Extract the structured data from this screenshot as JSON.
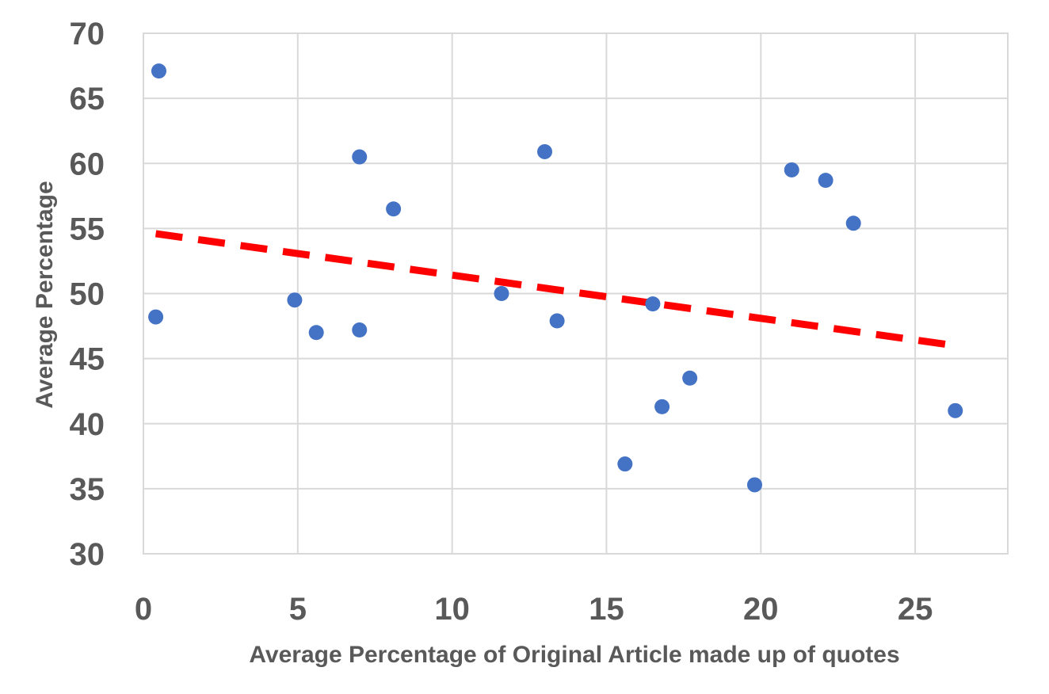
{
  "chart_data": {
    "type": "scatter",
    "xlabel": "Average Percentage of Original Article made up of quotes",
    "ylabel": "Average Percentage",
    "xlim": [
      0,
      28
    ],
    "ylim": [
      30,
      70
    ],
    "x_ticks": [
      0,
      5,
      10,
      15,
      20,
      25
    ],
    "y_ticks": [
      30,
      35,
      40,
      45,
      50,
      55,
      60,
      65,
      70
    ],
    "grid": true,
    "series": [
      {
        "points": [
          {
            "x": 0.5,
            "y": 67.1
          },
          {
            "x": 0.4,
            "y": 48.2
          },
          {
            "x": 4.9,
            "y": 49.5
          },
          {
            "x": 5.6,
            "y": 47.0
          },
          {
            "x": 7.0,
            "y": 60.5
          },
          {
            "x": 7.0,
            "y": 47.2
          },
          {
            "x": 8.1,
            "y": 56.5
          },
          {
            "x": 11.6,
            "y": 50.0
          },
          {
            "x": 13.0,
            "y": 60.9
          },
          {
            "x": 13.4,
            "y": 47.9
          },
          {
            "x": 15.6,
            "y": 36.9
          },
          {
            "x": 16.5,
            "y": 49.2
          },
          {
            "x": 16.8,
            "y": 41.3
          },
          {
            "x": 17.7,
            "y": 43.5
          },
          {
            "x": 19.8,
            "y": 35.3
          },
          {
            "x": 21.0,
            "y": 59.5
          },
          {
            "x": 22.1,
            "y": 58.7
          },
          {
            "x": 23.0,
            "y": 55.4
          },
          {
            "x": 26.3,
            "y": 41.0
          }
        ]
      }
    ],
    "trendline": {
      "type": "linear",
      "points": [
        {
          "x": 0.4,
          "y": 54.6
        },
        {
          "x": 26.3,
          "y": 46.0
        }
      ]
    },
    "colors": {
      "points": "#4472c4",
      "trendline": "#ff0000",
      "grid": "#d9d9d9",
      "text": "#595959"
    }
  }
}
